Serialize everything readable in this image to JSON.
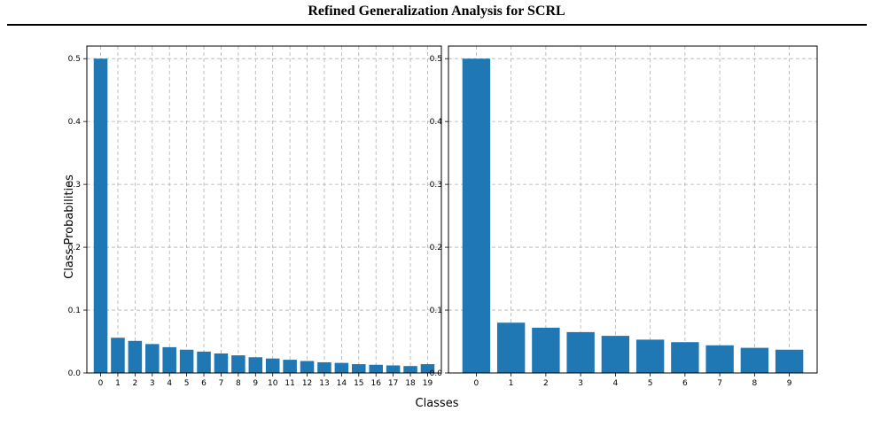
{
  "header": {
    "title": "Refined Generalization Analysis for SCRL"
  },
  "figure": {
    "shared_ylabel": "Class Probabilities",
    "shared_xlabel": "Classes",
    "caption": ""
  },
  "chart_data": [
    {
      "type": "bar",
      "title": "",
      "categories": [
        "0",
        "1",
        "2",
        "3",
        "4",
        "5",
        "6",
        "7",
        "8",
        "9",
        "10",
        "11",
        "12",
        "13",
        "14",
        "15",
        "16",
        "17",
        "18",
        "19"
      ],
      "values": [
        0.5,
        0.056,
        0.051,
        0.046,
        0.041,
        0.037,
        0.034,
        0.031,
        0.028,
        0.025,
        0.023,
        0.021,
        0.019,
        0.017,
        0.016,
        0.014,
        0.013,
        0.012,
        0.011,
        0.014
      ],
      "ylim": [
        0,
        0.52
      ],
      "yticks": [
        "0.0",
        "0.1",
        "0.2",
        "0.3",
        "0.4",
        "0.5"
      ],
      "grid": true,
      "bar_color": "#1f77b4"
    },
    {
      "type": "bar",
      "title": "",
      "categories": [
        "0",
        "1",
        "2",
        "3",
        "4",
        "5",
        "6",
        "7",
        "8",
        "9"
      ],
      "values": [
        0.5,
        0.08,
        0.072,
        0.065,
        0.059,
        0.053,
        0.049,
        0.044,
        0.04,
        0.037
      ],
      "ylim": [
        0,
        0.52
      ],
      "yticks": [
        "0.0",
        "0.1",
        "0.2",
        "0.3",
        "0.4",
        "0.5"
      ],
      "grid": true,
      "bar_color": "#1f77b4"
    }
  ]
}
